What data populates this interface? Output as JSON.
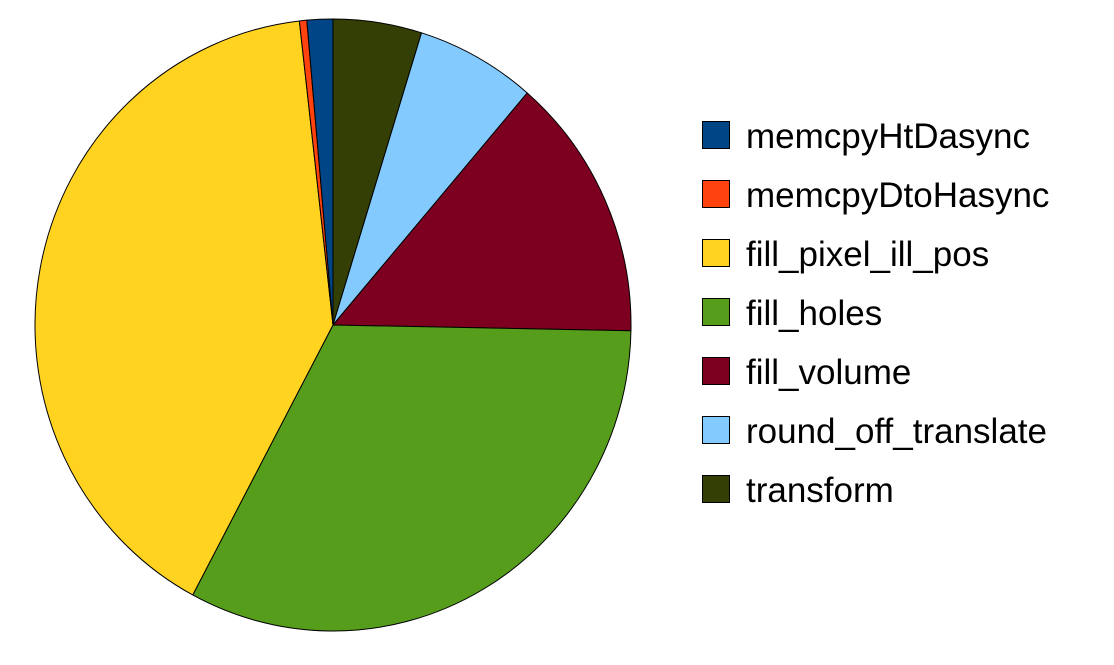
{
  "chart_data": {
    "type": "pie",
    "title": "",
    "start_angle_deg": 0,
    "direction": "clockwise",
    "legend_position": "right",
    "slices": [
      {
        "label": "transform",
        "value": 4.8,
        "color": "#333f04"
      },
      {
        "label": "round_off_translate",
        "value": 6.5,
        "color": "#83caff"
      },
      {
        "label": "fill_volume",
        "value": 14.0,
        "color": "#7e0021"
      },
      {
        "label": "fill_holes",
        "value": 32.5,
        "color": "#579d1c"
      },
      {
        "label": "fill_pixel_ill_pos",
        "value": 40.4,
        "color": "#ffd320"
      },
      {
        "label": "memcpyDtoHasync",
        "value": 0.4,
        "color": "#ff420e"
      },
      {
        "label": "memcpyHtDasync",
        "value": 1.4,
        "color": "#004586"
      }
    ],
    "legend_order": [
      "memcpyHtDasync",
      "memcpyDtoHasync",
      "fill_pixel_ill_pos",
      "fill_holes",
      "fill_volume",
      "round_off_translate",
      "transform"
    ]
  }
}
